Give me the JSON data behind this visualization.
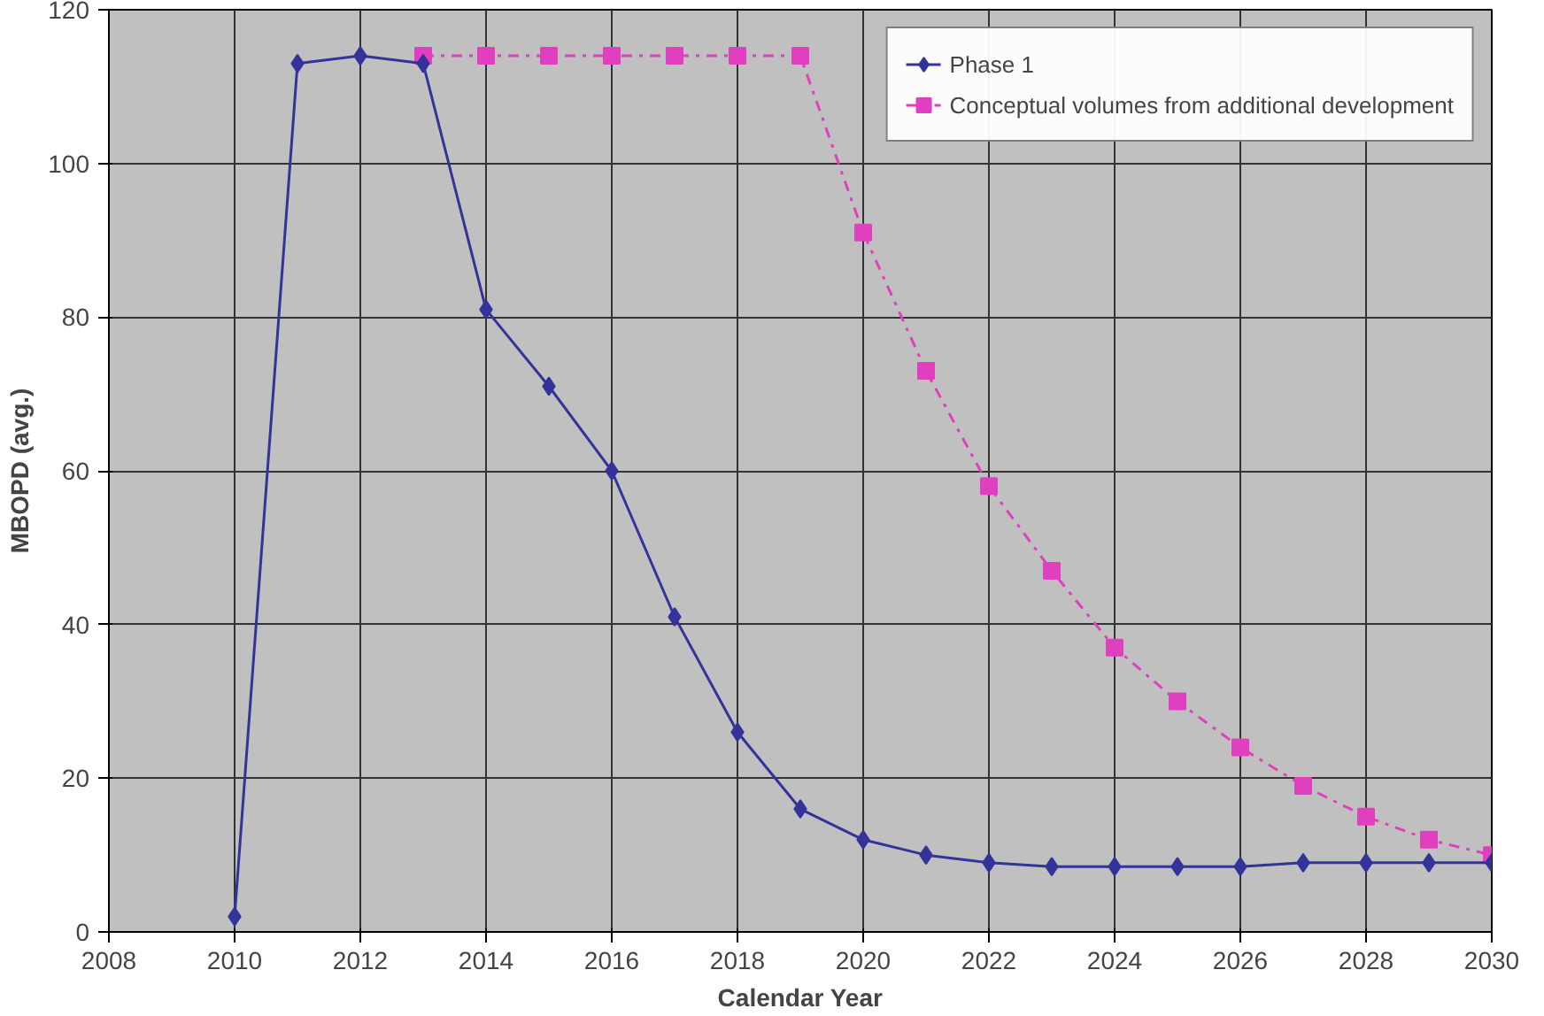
{
  "chart_data": {
    "type": "line",
    "xlabel": "Calendar Year",
    "ylabel": "MBOPD (avg.)",
    "xlim": [
      2008,
      2030
    ],
    "xticks": [
      2008,
      2010,
      2012,
      2014,
      2016,
      2018,
      2020,
      2022,
      2024,
      2026,
      2028,
      2030
    ],
    "ylim": [
      0,
      120
    ],
    "yticks": [
      0,
      20,
      40,
      60,
      80,
      100,
      120
    ],
    "grid": true,
    "legend": "top right",
    "series": [
      {
        "name": "Phase 1",
        "color": "#333399",
        "marker": "diamond",
        "line_style": "solid",
        "x": [
          2010,
          2011,
          2012,
          2013,
          2014,
          2015,
          2016,
          2017,
          2018,
          2019,
          2020,
          2021,
          2022,
          2023,
          2024,
          2025,
          2026,
          2027,
          2028,
          2029,
          2030
        ],
        "values": [
          2,
          113,
          114,
          113,
          81,
          71,
          60,
          41,
          26,
          16,
          12,
          10,
          9,
          8.5,
          8.5,
          8.5,
          8.5,
          9,
          9,
          9,
          9
        ]
      },
      {
        "name": "Conceptual volumes from additional development",
        "color": "#e040c0",
        "marker": "square",
        "line_style": "dashdot",
        "x": [
          2013,
          2014,
          2015,
          2016,
          2017,
          2018,
          2019,
          2020,
          2021,
          2022,
          2023,
          2024,
          2025,
          2026,
          2027,
          2028,
          2029,
          2030
        ],
        "values": [
          114,
          114,
          114,
          114,
          114,
          114,
          114,
          91,
          73,
          58,
          47,
          37,
          30,
          24,
          19,
          15,
          12,
          10
        ]
      }
    ]
  }
}
